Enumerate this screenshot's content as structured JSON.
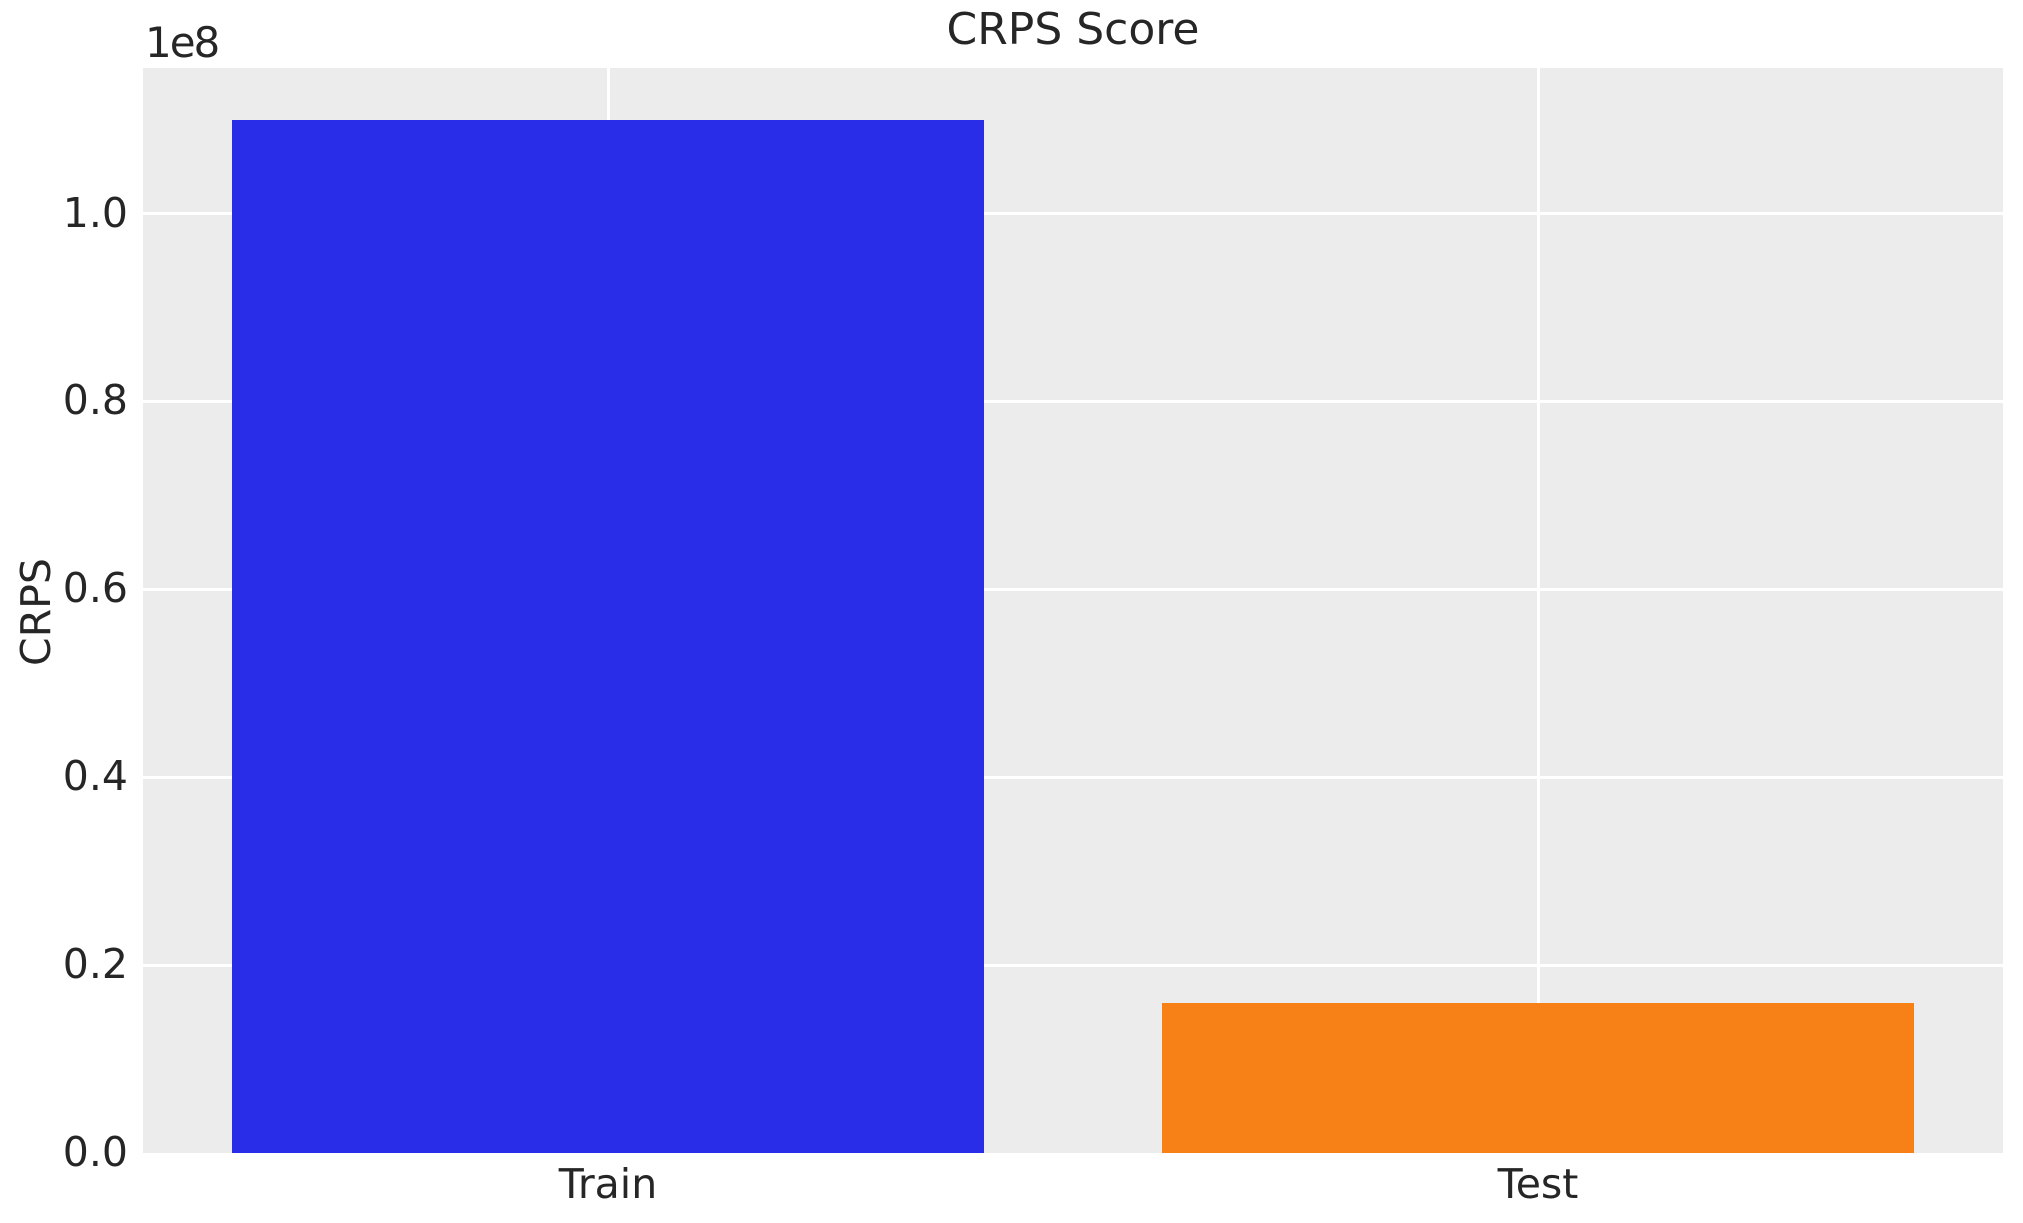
{
  "chart_data": {
    "type": "bar",
    "title": "CRPS Score",
    "ylabel": "CRPS",
    "xlabel": "",
    "y_offset_text": "1e8",
    "categories": [
      "Train",
      "Test"
    ],
    "values": [
      110000000,
      16000000
    ],
    "values_in_1e8": [
      1.1,
      0.16
    ],
    "series": [
      {
        "name": "Train",
        "value": 110000000,
        "color": "#2a2de8"
      },
      {
        "name": "Test",
        "value": 16000000,
        "color": "#f78017"
      }
    ],
    "bar_colors": [
      "#2a2de8",
      "#f78017"
    ],
    "ylim": [
      0,
      115500000
    ],
    "ytick_values": [
      0,
      20000000,
      40000000,
      60000000,
      80000000,
      100000000
    ],
    "ytick_labels": [
      "0.0",
      "0.2",
      "0.4",
      "0.6",
      "0.8",
      "1.0"
    ],
    "grid": true,
    "legend": "none",
    "plot_background_color": "#ececec",
    "gridline_color": "#ffffff",
    "text_color": "#262626",
    "figure_background_color": "#ffffff"
  }
}
